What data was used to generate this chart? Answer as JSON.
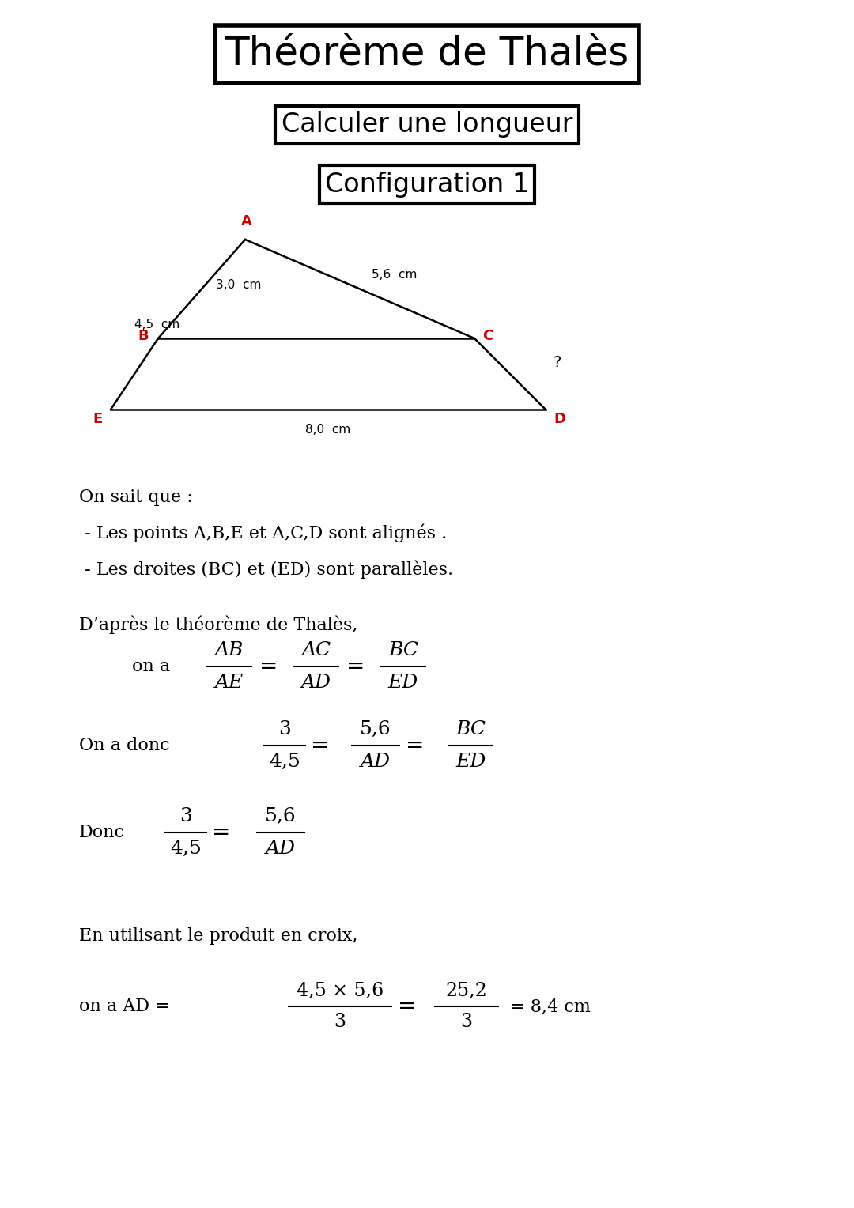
{
  "title": "Théorème de Thalès",
  "subtitle": "Calculer une longueur",
  "config": "Configuration 1",
  "bg_color": "#ffffff",
  "title_fontsize": 36,
  "subtitle_fontsize": 24,
  "config_fontsize": 24,
  "label_color": "#cc0000",
  "line_color": "#000000",
  "measure_AB": "3,0  cm",
  "measure_AC": "5,6  cm",
  "measure_AE": "4,5  cm",
  "measure_ED": "8,0  cm",
  "measure_question": "?",
  "text_block": [
    "On sait que :",
    " - Les points A,B,E et A,C,D sont alignés .",
    " - Les droites (BC) et (ED) sont parallèles."
  ],
  "text_thales": "D’après le théorème de Thalès,",
  "text_produit": "En utilisant le produit en croix,"
}
